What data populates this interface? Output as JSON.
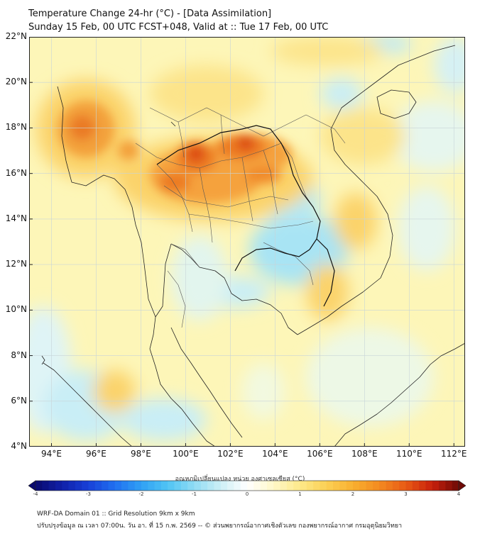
{
  "header": {
    "title_line1": "Temperature Change 24-hr (°C) - [Data Assimilation]",
    "title_line2": "Sunday 15 Feb, 00 UTC FCST+048, Valid at :: Tue 17 Feb, 00 UTC"
  },
  "map": {
    "lat_labels": [
      "22°N",
      "20°N",
      "18°N",
      "16°N",
      "14°N",
      "12°N",
      "10°N",
      "8°N",
      "6°N",
      "4°N"
    ],
    "lon_labels": [
      "94°E",
      "96°E",
      "98°E",
      "100°E",
      "102°E",
      "104°E",
      "106°E",
      "108°E",
      "110°E",
      "112°E"
    ],
    "lat_range": [
      4,
      22
    ],
    "lon_range": [
      93,
      112.5
    ]
  },
  "colorbar": {
    "title": "อุณหภูมิเปลี่ยนแปลง หน่วย องศาเซลเซียส (°C)",
    "ticks": [
      "-4",
      "-3",
      "-2",
      "-1",
      "0",
      "1",
      "2",
      "3",
      "4"
    ],
    "range": [
      -4,
      4
    ]
  },
  "footer": {
    "line1": "WRF-DA Domain 01 :: Grid Resolution 9km x 9km",
    "line2": "ปรับปรุงข้อมูล ณ เวลา 07:00น. วัน อา. ที่ 15 ก.พ. 2569 -- © ส่วนพยากรณ์อากาศเชิงตัวเลข กองพยากรณ์อากาศ กรมอุตุนิยมวิทยา"
  },
  "colors": {
    "warm": "#f08020",
    "hot": "#d83010",
    "mild": "#fde68a",
    "cool": "#a8e4f4",
    "cold": "#60c8ec"
  }
}
